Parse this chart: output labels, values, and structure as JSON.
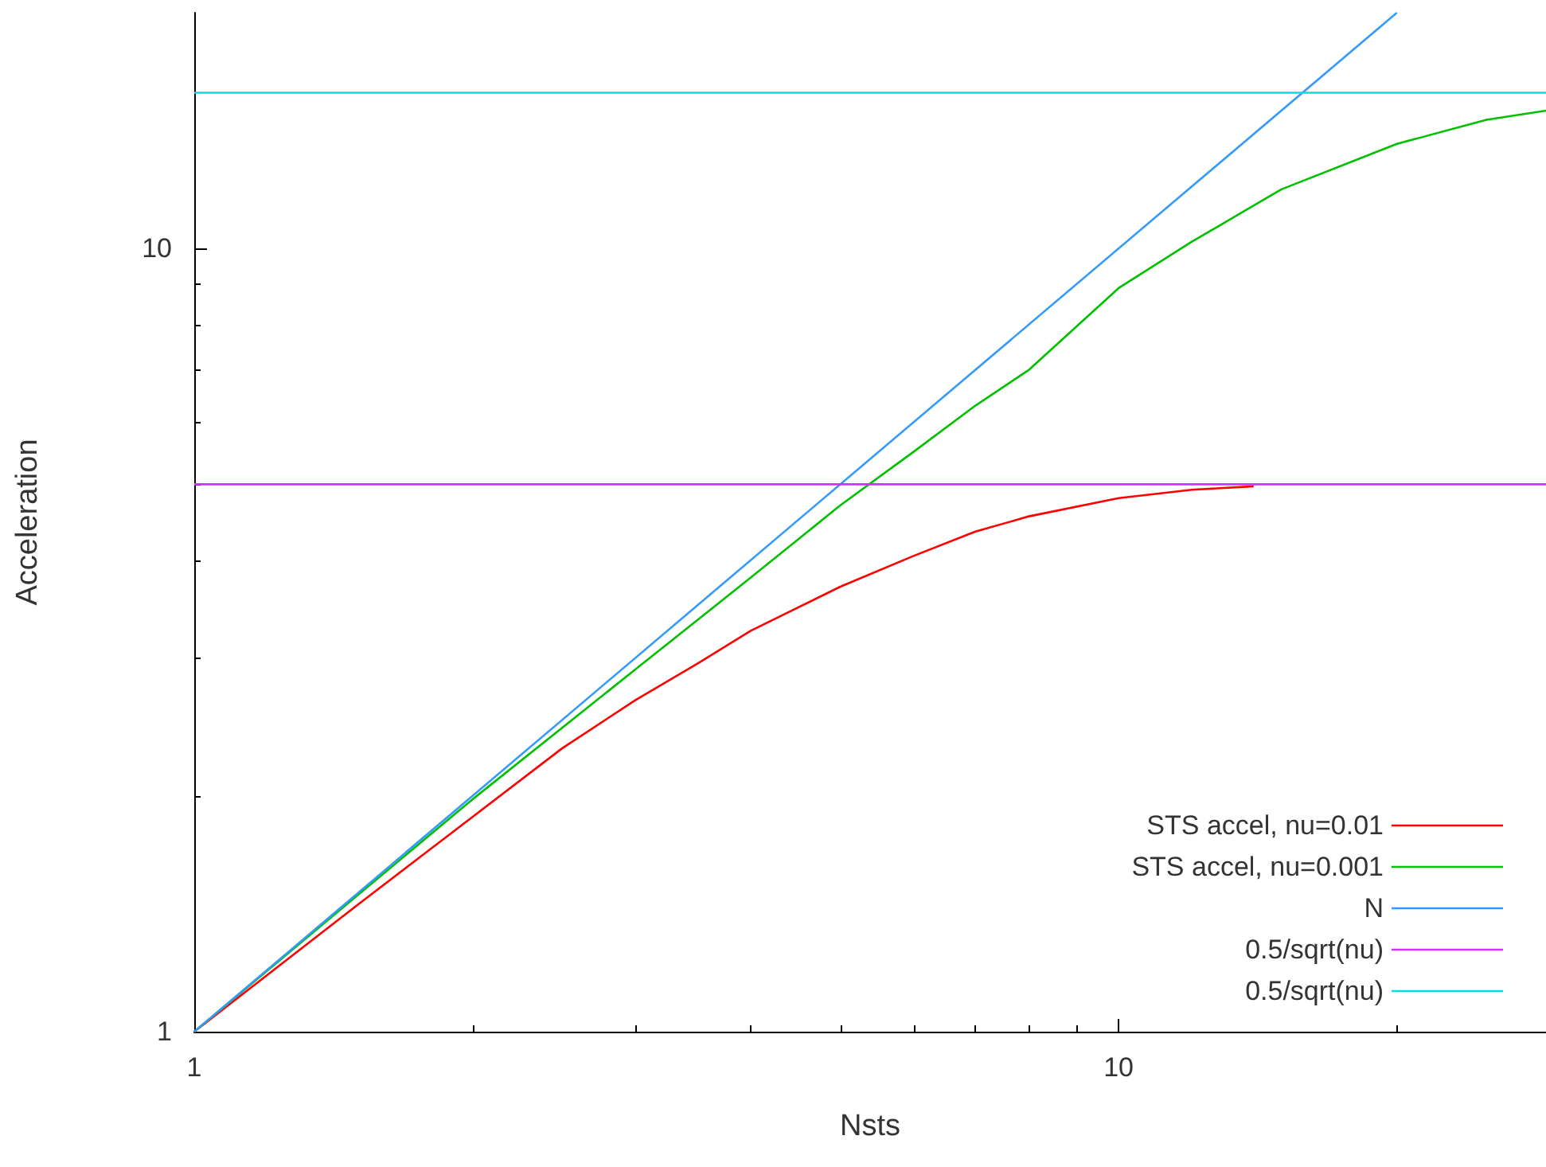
{
  "chart_data": {
    "type": "line",
    "xlabel": "Nsts",
    "ylabel": "Acceleration",
    "log": "xy",
    "xlim": [
      1,
      29
    ],
    "ylim": [
      1,
      20
    ],
    "xticks": [
      1,
      10
    ],
    "yticks": [
      1,
      10
    ],
    "grid": false,
    "legend": "bottom right",
    "marker": "none",
    "line_style": "solid",
    "series": [
      {
        "name": "STS accel, nu=0.01",
        "color": "#ff0000",
        "x": [
          1,
          1.5,
          2,
          2.5,
          3,
          3.5,
          4,
          5,
          6,
          7,
          8,
          10,
          12,
          14
        ],
        "values": [
          1,
          1.45,
          1.88,
          2.3,
          2.65,
          2.95,
          3.25,
          3.7,
          4.05,
          4.35,
          4.55,
          4.8,
          4.92,
          4.97
        ]
      },
      {
        "name": "STS accel, nu=0.001",
        "color": "#00c000",
        "x": [
          1,
          2,
          3,
          4,
          5,
          6,
          7,
          8,
          10,
          12,
          15,
          20,
          25,
          29
        ],
        "values": [
          1,
          1.98,
          2.9,
          3.8,
          4.7,
          5.5,
          6.3,
          7.0,
          8.9,
          10.2,
          11.9,
          13.6,
          14.6,
          15.0
        ]
      },
      {
        "name": "N",
        "color": "#3399ff",
        "x": [
          1,
          20
        ],
        "values": [
          1,
          20
        ]
      },
      {
        "name": "0.5/sqrt(nu)",
        "color": "#cc33ff",
        "x": [
          1,
          29
        ],
        "values": [
          5,
          5
        ]
      },
      {
        "name": "0.5/sqrt(nu)",
        "color": "#00e0e0",
        "x": [
          1,
          29
        ],
        "values": [
          15.81,
          15.81
        ]
      }
    ]
  }
}
